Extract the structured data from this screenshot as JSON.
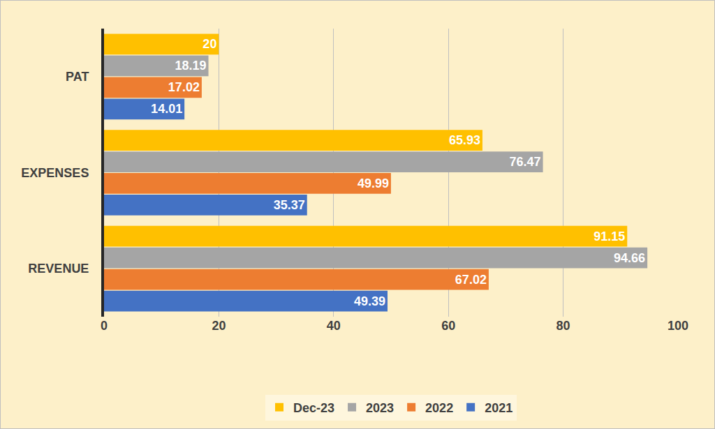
{
  "chart_data": {
    "type": "bar",
    "orientation": "horizontal",
    "categories": [
      "PAT",
      "EXPENSES",
      "REVENUE"
    ],
    "series": [
      {
        "name": "Dec-23",
        "color": "#ffc000",
        "values": [
          20,
          65.93,
          91.15
        ]
      },
      {
        "name": "2023",
        "color": "#a5a5a5",
        "values": [
          18.19,
          76.47,
          94.66
        ]
      },
      {
        "name": "2022",
        "color": "#ed7d31",
        "values": [
          17.02,
          49.99,
          67.02
        ]
      },
      {
        "name": "2021",
        "color": "#4472c4",
        "values": [
          14.01,
          35.37,
          49.39
        ]
      }
    ],
    "xlim": [
      0,
      100
    ],
    "xticks": [
      0,
      20,
      40,
      60,
      80,
      100
    ],
    "grid": true,
    "legend": "bottom",
    "data_labels": true
  }
}
